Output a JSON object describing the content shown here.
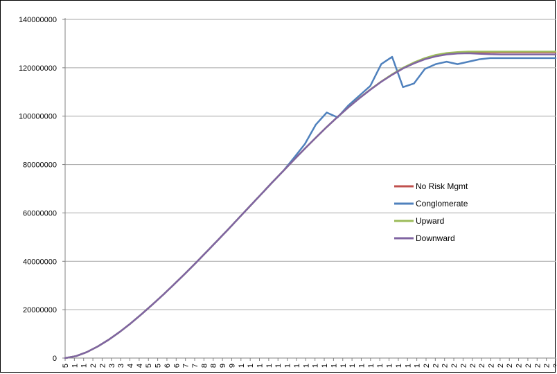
{
  "chart_data": {
    "type": "line",
    "title": "",
    "xlabel": "",
    "ylabel": "",
    "ylim": [
      0,
      140000000
    ],
    "yticks": [
      0,
      20000000,
      40000000,
      60000000,
      80000000,
      100000000,
      120000000,
      140000000
    ],
    "ytick_labels": [
      "0",
      "20000000",
      "40000000",
      "60000000",
      "80000000",
      "100000000",
      "120000000",
      "140000000"
    ],
    "xtick_labels": [
      "5",
      "1",
      "1",
      "2",
      "2",
      "3",
      "3",
      "4",
      "4",
      "5",
      "5",
      "6",
      "6",
      "7",
      "7",
      "8",
      "8",
      "9",
      "9",
      "1",
      "1",
      "1",
      "1",
      "1",
      "1",
      "1",
      "1",
      "1",
      "1",
      "1",
      "1",
      "1",
      "1",
      "1",
      "1",
      "1",
      "1",
      "1",
      "1",
      "2",
      "2",
      "2",
      "2",
      "2",
      "2",
      "2",
      "2",
      "2",
      "2",
      "2",
      "2",
      "2",
      "2",
      "2"
    ],
    "grid": true,
    "legend_position": "center-right",
    "x": [
      0,
      4,
      8,
      12,
      16,
      20,
      24,
      28,
      32,
      36,
      40,
      44,
      48,
      52,
      56,
      60,
      64,
      68,
      72,
      76,
      80,
      84,
      88,
      92,
      96,
      100,
      104,
      108,
      112,
      116,
      120,
      124,
      128,
      132,
      136,
      140,
      144,
      148,
      152,
      156,
      160,
      164,
      168,
      172,
      176,
      180
    ],
    "series": [
      {
        "name": "No Risk Mgmt",
        "color": "#c0504d",
        "values": [
          0,
          800000,
          2500000,
          4800000,
          7600000,
          10800000,
          14300000,
          18100000,
          22100000,
          26200000,
          30500000,
          34900000,
          39400000,
          44000000,
          48700000,
          53400000,
          58200000,
          63000000,
          67800000,
          72600000,
          77300000,
          82000000,
          86600000,
          91100000,
          95500000,
          99700000,
          103700000,
          107500000,
          111000000,
          114300000,
          117200000,
          119800000,
          121900000,
          123600000,
          124800000,
          125600000,
          126100000,
          126300000,
          126400000,
          126400000,
          126400000,
          126400000,
          126400000,
          126400000,
          126400000,
          126400000
        ]
      },
      {
        "name": "Conglomerate",
        "color": "#4f81bd",
        "values": [
          0,
          800000,
          2500000,
          4800000,
          7600000,
          10800000,
          14300000,
          18100000,
          22100000,
          26200000,
          30500000,
          34900000,
          39400000,
          44000000,
          48700000,
          53400000,
          58200000,
          63000000,
          67800000,
          72600000,
          77300000,
          82800000,
          88500000,
          96500000,
          101500000,
          99500000,
          104500000,
          108500000,
          112500000,
          121500000,
          124500000,
          112000000,
          113500000,
          119500000,
          121500000,
          122500000,
          121500000,
          122500000,
          123500000,
          124000000,
          124000000,
          124000000,
          124000000,
          124000000,
          124000000,
          124000000
        ]
      },
      {
        "name": "Upward",
        "color": "#9bbb59",
        "values": [
          0,
          800000,
          2500000,
          4800000,
          7600000,
          10800000,
          14300000,
          18100000,
          22100000,
          26200000,
          30500000,
          34900000,
          39400000,
          44000000,
          48700000,
          53400000,
          58200000,
          63000000,
          67800000,
          72600000,
          77300000,
          82000000,
          86600000,
          91100000,
          95500000,
          99700000,
          103700000,
          107500000,
          111000000,
          114300000,
          117300000,
          120000000,
          122200000,
          124000000,
          125300000,
          126100000,
          126500000,
          126700000,
          126700000,
          126700000,
          126700000,
          126700000,
          126700000,
          126700000,
          126700000,
          126700000
        ]
      },
      {
        "name": "Downward",
        "color": "#8064a2",
        "values": [
          0,
          800000,
          2500000,
          4800000,
          7600000,
          10800000,
          14300000,
          18100000,
          22100000,
          26200000,
          30500000,
          34900000,
          39400000,
          44000000,
          48700000,
          53400000,
          58200000,
          63000000,
          67800000,
          72600000,
          77300000,
          82000000,
          86600000,
          91100000,
          95500000,
          99700000,
          103700000,
          107400000,
          110900000,
          114200000,
          117100000,
          119700000,
          121800000,
          123500000,
          124700000,
          125500000,
          125900000,
          126000000,
          125800000,
          125600000,
          125500000,
          125500000,
          125500000,
          125500000,
          125500000,
          125500000
        ]
      }
    ]
  }
}
